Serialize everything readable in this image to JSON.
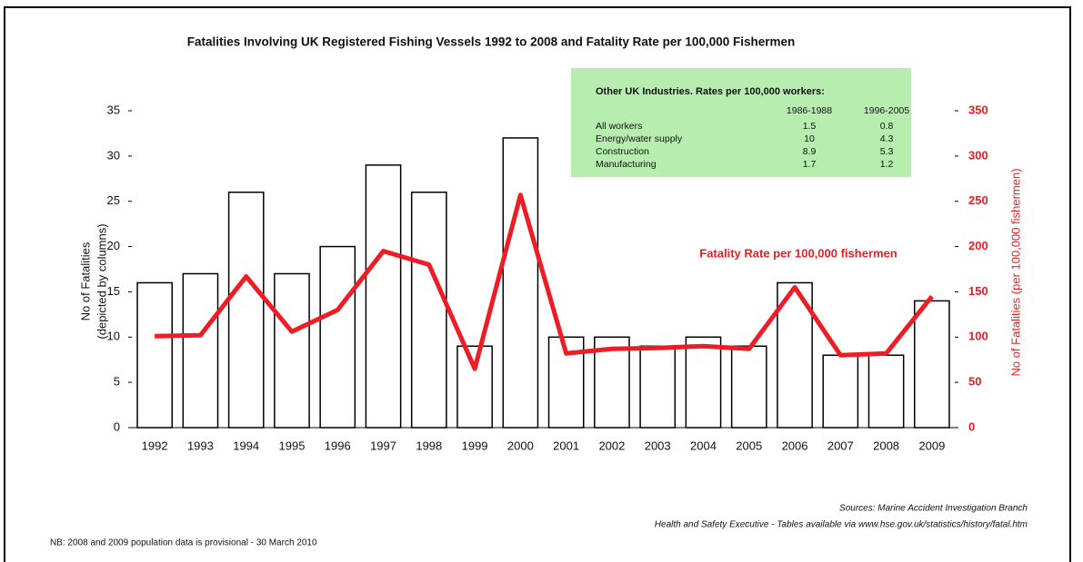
{
  "chart_data": {
    "type": "bar",
    "title": "Fatalities Involving UK Registered Fishing Vessels 1992 to 2008 and Fatality Rate per 100,000 Fishermen",
    "categories": [
      "1992",
      "1993",
      "1994",
      "1995",
      "1996",
      "1997",
      "1998",
      "1999",
      "2000",
      "2001",
      "2002",
      "2003",
      "2004",
      "2005",
      "2006",
      "2007",
      "2008",
      "2009"
    ],
    "series": [
      {
        "type": "bar",
        "color": "#000000",
        "values": [
          16,
          17,
          26,
          17,
          20,
          29,
          26,
          9,
          32,
          10,
          10,
          9,
          10,
          9,
          16,
          8,
          8,
          14
        ]
      },
      {
        "type": "line",
        "name": "Fatality Rate per 100,000 fishermen",
        "color": "#ee1c24",
        "axis": "y2",
        "values": [
          101,
          102,
          167,
          106,
          130,
          195,
          180,
          65,
          257,
          82,
          87,
          88,
          90,
          87,
          155,
          80,
          82,
          145
        ]
      }
    ],
    "ylabel": [
      "No of Fatalities",
      "(depicted by columns)"
    ],
    "y2label": "No of Fatalities (per 100,000 fishermen)",
    "ylim": [
      0,
      35
    ],
    "yticks": [
      0,
      5,
      10,
      15,
      20,
      25,
      30,
      35
    ],
    "y2lim": [
      0,
      350
    ],
    "y2ticks": [
      0,
      50,
      100,
      150,
      200,
      250,
      300,
      350
    ],
    "inset": {
      "title": "Other UK Industries.  Rates per 100,000 workers:",
      "columns": [
        "1986-1988",
        "1996-2005"
      ],
      "rows": [
        {
          "label": "All workers",
          "values": [
            1.5,
            0.8
          ]
        },
        {
          "label": "Energy/water supply",
          "values": [
            10,
            4.3
          ]
        },
        {
          "label": "Construction",
          "values": [
            8.9,
            5.3
          ]
        },
        {
          "label": "Manufacturing",
          "values": [
            1.7,
            1.2
          ]
        }
      ]
    },
    "sources": [
      "Sources: Marine Accident Investigation Branch",
      "Health and Safety Executive - Tables available via www.hse.gov.uk/statistics/history/fatal.htm"
    ],
    "note": "NB: 2008 and 2009 population data is provisional - 30 March 2010"
  }
}
